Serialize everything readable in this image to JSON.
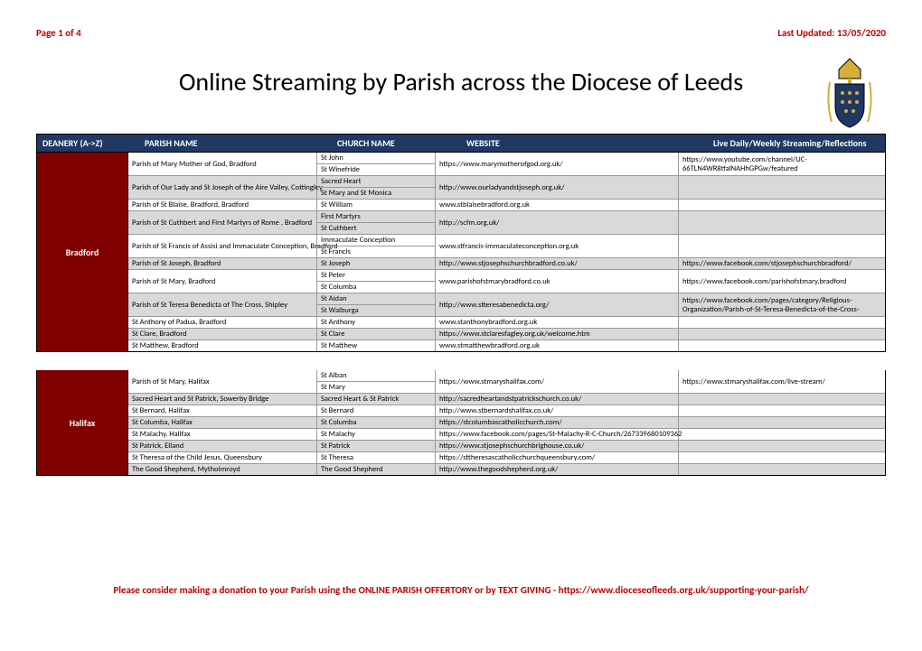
{
  "page_info": "Page 1 of 4",
  "last_updated": "Last Updated: 13/05/2020",
  "title": "Online Streaming by Parish across the Diocese of Leeds",
  "columns": {
    "deanery": "DEANERY (A->Z)",
    "parish": "PARISH NAME",
    "church": "CHURCH NAME",
    "website": "WEBSITE",
    "stream": "Live Daily/Weekly Streaming/Reflections"
  },
  "crest_colors": {
    "mitre_gold": "#d4af37",
    "shield_navy": "#203864",
    "outline": "#000"
  },
  "deaneries": [
    {
      "name": "Bradford",
      "rows": [
        {
          "alt": false,
          "parish": "Parish of Mary Mother of God, Bradford",
          "rowspan": 2,
          "church": "St John",
          "website": "https://www.marymotherofgod.org.uk/",
          "website_rowspan": 2,
          "stream": "https://www.youtube.com/channel/UC-66TLN4WR8tfalNAHhGPGw/featured",
          "stream_rowspan": 2
        },
        {
          "alt": false,
          "church": "St Winefride"
        },
        {
          "alt": true,
          "parish": "Parish of Our Lady and St Joseph of the Aire Valley, Cottingley",
          "rowspan": 2,
          "church": "Sacred Heart",
          "website": "http://www.ourladyandstjoseph.org.uk/",
          "website_rowspan": 2,
          "stream": "",
          "stream_rowspan": 2
        },
        {
          "alt": true,
          "church": "St Mary and St Monica"
        },
        {
          "alt": false,
          "parish": "Parish of St Blaise, Bradford, Bradford",
          "rowspan": 1,
          "church": "St William",
          "website": "www.stblaisebradford.org.uk",
          "website_rowspan": 1,
          "stream": "",
          "stream_rowspan": 1
        },
        {
          "alt": true,
          "parish": "Parish of St Cuthbert and First Martyrs of Rome , Bradford",
          "rowspan": 2,
          "church": "First Martyrs",
          "website": "http://scfm.org.uk/",
          "website_rowspan": 2,
          "stream": "",
          "stream_rowspan": 2
        },
        {
          "alt": true,
          "church": "St Cuthbert"
        },
        {
          "alt": false,
          "parish": "Parish of St Francis of Assisi and Immaculate Conception, Bradford",
          "rowspan": 2,
          "church": "Immaculate Conception",
          "website": "www.stfrancis-immaculateconception.org.uk",
          "website_rowspan": 2,
          "stream": "",
          "stream_rowspan": 2
        },
        {
          "alt": false,
          "church": "St Francis"
        },
        {
          "alt": true,
          "parish": "Parish of St Joseph, Bradford",
          "rowspan": 1,
          "church": "St Joseph",
          "website": "http://www.stjosephschurchbradford.co.uk/",
          "website_rowspan": 1,
          "stream": "https://www.facebook.com/stjosephschurchbradford/",
          "stream_rowspan": 1
        },
        {
          "alt": false,
          "parish": "Parish of St Mary, Bradford",
          "rowspan": 2,
          "church": "St Peter",
          "website": "www.parishofstmarybradford.co.uk",
          "website_rowspan": 2,
          "stream": "https://www.facebook.com/parishofstmary.bradford",
          "stream_rowspan": 2
        },
        {
          "alt": false,
          "church": "St Columba"
        },
        {
          "alt": true,
          "parish": "Parish of St Teresa Benedicta of The Cross, Shipley",
          "rowspan": 2,
          "church": "St Aidan",
          "website": "http://www.stteresabenedicta.org/",
          "website_rowspan": 2,
          "stream": "https://www.facebook.com/pages/category/Religious-Organization/Parish-of-St-Teresa-Benedicta-of-the-Cross-",
          "stream_rowspan": 2
        },
        {
          "alt": true,
          "church": "St Walburga"
        },
        {
          "alt": false,
          "parish": "St Anthony of Padua, Bradford",
          "rowspan": 1,
          "church": "St Anthony",
          "website": "www.stanthonybradford.org.uk",
          "website_rowspan": 1,
          "stream": "",
          "stream_rowspan": 1
        },
        {
          "alt": true,
          "parish": "St Clare, Bradford",
          "rowspan": 1,
          "church": "St Clare",
          "website": "https://www.stclaresfagley.org.uk/welcome.htm",
          "website_rowspan": 1,
          "stream": "",
          "stream_rowspan": 1
        },
        {
          "alt": false,
          "parish": "St Matthew, Bradford",
          "rowspan": 1,
          "church": "St Matthew",
          "website": "www.stmatthewbradford.org.uk",
          "website_rowspan": 1,
          "stream": "",
          "stream_rowspan": 1
        }
      ]
    },
    {
      "name": "Halifax",
      "rows": [
        {
          "alt": false,
          "parish": "Parish of St Mary, Halifax",
          "rowspan": 2,
          "church": "St Alban",
          "website": "https://www.stmaryshalifax.com/",
          "website_rowspan": 2,
          "stream": "https://www.stmaryshalifax.com/live-stream/",
          "stream_rowspan": 2
        },
        {
          "alt": false,
          "church": "St Mary"
        },
        {
          "alt": true,
          "parish": "Sacred Heart and St Patrick, Sowerby Bridge",
          "rowspan": 1,
          "church": "Sacred Heart & St Patrick",
          "website": "http://sacredheartandstpatrickschurch.co.uk/",
          "website_rowspan": 1,
          "stream": "",
          "stream_rowspan": 1
        },
        {
          "alt": false,
          "parish": "St Bernard, Halifax",
          "rowspan": 1,
          "church": "St Bernard",
          "website": "http://www.stbernardshalifax.co.uk/",
          "website_rowspan": 1,
          "stream": "",
          "stream_rowspan": 1
        },
        {
          "alt": true,
          "parish": "St Columba, Halifax",
          "rowspan": 1,
          "church": "St Columba",
          "website": "https://stcolumbascatholicchurch.com/",
          "website_rowspan": 1,
          "stream": "",
          "stream_rowspan": 1
        },
        {
          "alt": false,
          "parish": "St Malachy, Halifax",
          "rowspan": 1,
          "church": "St Malachy",
          "website": "https://www.facebook.com/pages/St-Malachy-R-C-Church/267339680109362",
          "website_rowspan": 1,
          "stream": "",
          "stream_rowspan": 1
        },
        {
          "alt": true,
          "parish": "St Patrick, Elland",
          "rowspan": 1,
          "church": "St Patrick",
          "website": "https://www.stjosephschurchbrighouse.co.uk/",
          "website_rowspan": 1,
          "stream": "",
          "stream_rowspan": 1
        },
        {
          "alt": false,
          "parish": "St Theresa of the Child Jesus, Queensbury",
          "rowspan": 1,
          "church": "St Theresa",
          "website": "https://sttheresascatholicchurchqueensbury.com/",
          "website_rowspan": 1,
          "stream": "",
          "stream_rowspan": 1
        },
        {
          "alt": true,
          "parish": "The Good Shepherd, Mytholmroyd",
          "rowspan": 1,
          "church": "The Good Shepherd",
          "website": "http://www.thegoodshepherd.org.uk/",
          "website_rowspan": 1,
          "stream": "",
          "stream_rowspan": 1
        }
      ]
    }
  ],
  "footer": "Please consider making a donation to your Parish using the ONLINE PARISH OFFERTORY or by TEXT GIVING - https://www.dioceseofleeds.org.uk/supporting-your-parish/"
}
